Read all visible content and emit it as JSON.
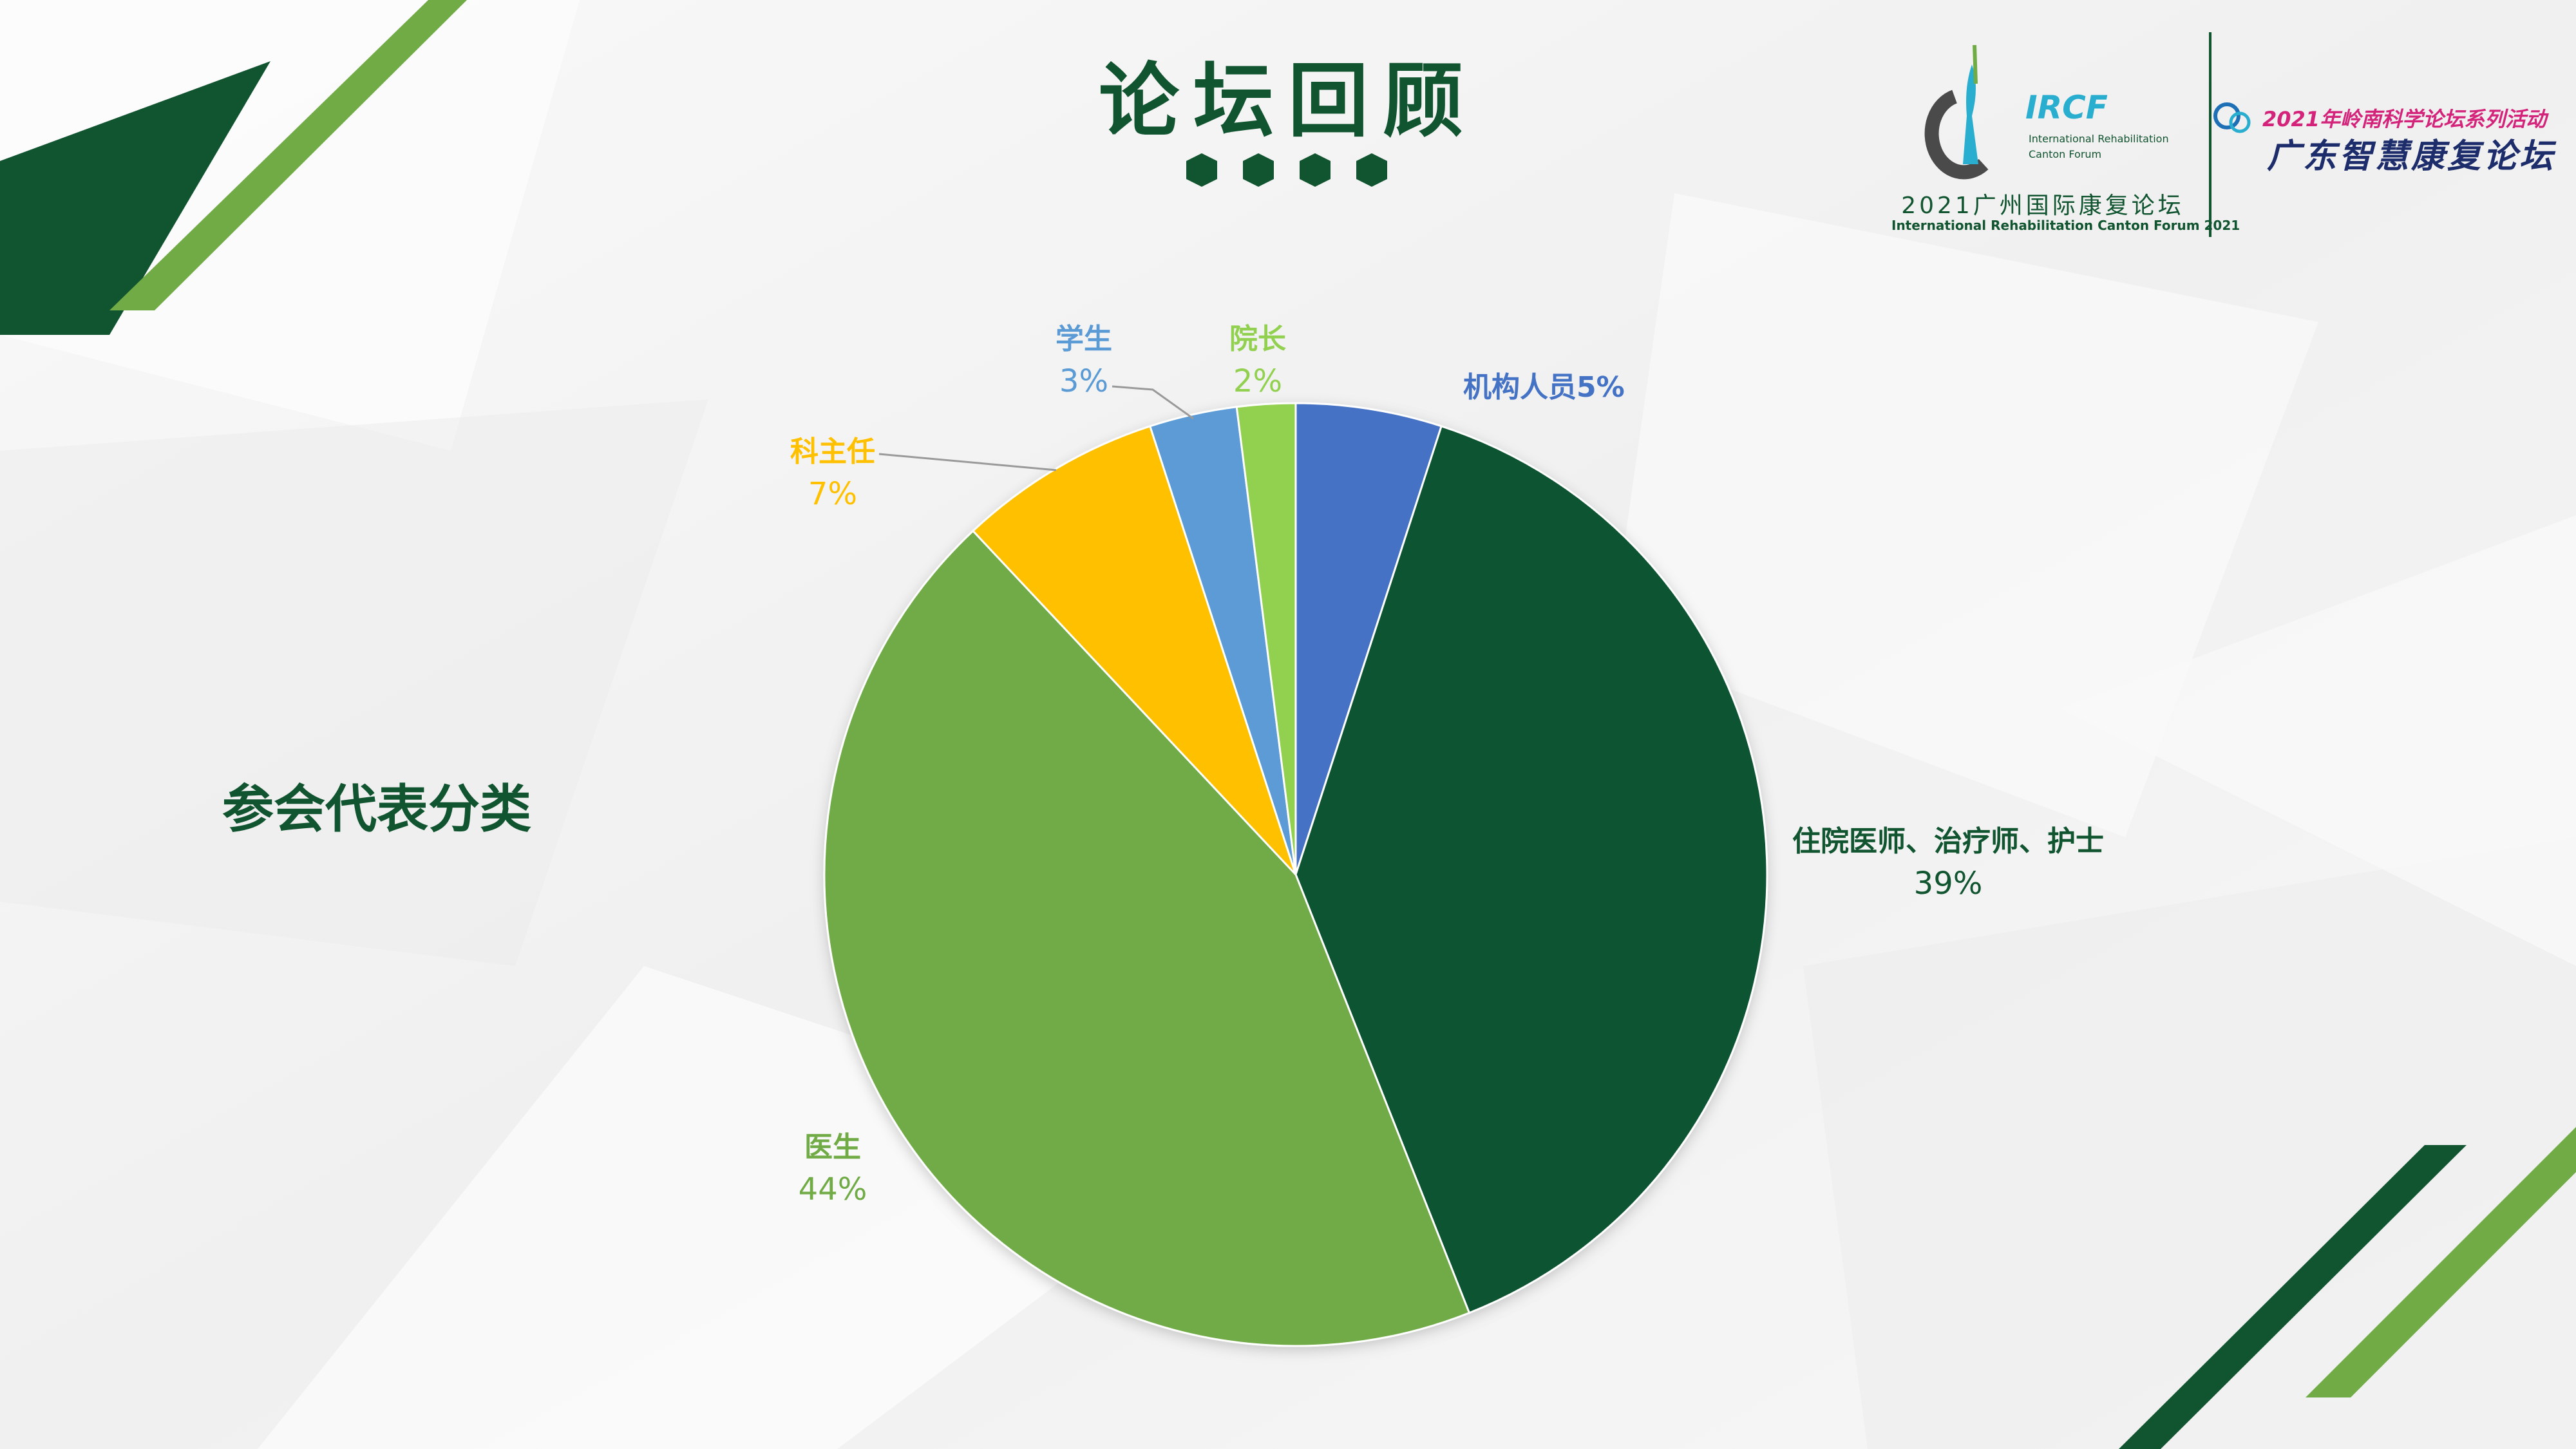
{
  "title": "论坛回顾",
  "side_label": "参会代表分类",
  "logo": {
    "irc_mark": "IRCF",
    "irc_line1": "International Rehabilitation",
    "irc_line2": "Canton Forum",
    "year_cn": "2021广州国际康复论坛",
    "year_en": "International Rehabilitation Canton Forum 2021",
    "series": "2021年岭南科学论坛系列活动",
    "series_name": "广东智慧康复论坛"
  },
  "colors": {
    "dark_green": "#115430",
    "light_green": "#70ab46",
    "blue": "#4472c4",
    "yellow": "#ffc000",
    "sky": "#5b9bd5",
    "lime": "#92d050"
  },
  "chart_data": {
    "type": "pie",
    "start": "12 o'clock, clockwise",
    "slices": [
      {
        "name": "机构人员",
        "value": 5,
        "label": "机构人员5%",
        "color": "#4472c4"
      },
      {
        "name": "住院医师、治疗师、护士",
        "value": 39,
        "label": "39%",
        "color": "#115430"
      },
      {
        "name": "医生",
        "value": 44,
        "label": "44%",
        "color": "#70ab46"
      },
      {
        "name": "科主任",
        "value": 7,
        "label": "7%",
        "color": "#ffc000"
      },
      {
        "name": "学生",
        "value": 3,
        "label": "3%",
        "color": "#5b9bd5"
      },
      {
        "name": "院长",
        "value": 2,
        "label": "2%",
        "color": "#92d050"
      }
    ]
  }
}
